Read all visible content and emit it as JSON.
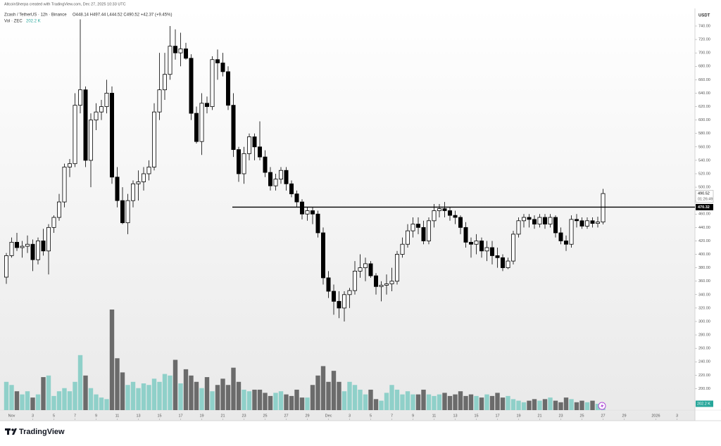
{
  "chart_data": {
    "type": "candlestick",
    "title": "AltcoinSherpa created with TradingView.com, Dec 27, 2025 10:33 UTC",
    "legend": "Zcash / TetherUS · 12h · Binance",
    "legend_values": "O448.14 H497.44 L444.52 C490.52 +42.37 (+9.45%)",
    "volume_name": "Vol · ZEC",
    "volume_label": "202.2 K",
    "axis_unit": "USDT",
    "countdown": "01:26:49",
    "brand": "TradingView",
    "open": [
      366,
      398,
      418,
      410,
      412,
      415,
      392,
      420,
      405,
      440,
      455,
      478,
      530,
      535,
      622,
      645,
      540,
      600,
      612,
      620,
      640,
      515,
      480,
      447,
      480,
      505,
      508,
      520,
      530,
      612,
      645,
      668,
      710,
      700,
      706,
      692,
      610,
      568,
      625,
      620,
      690,
      685,
      672,
      622,
      556,
      520,
      550,
      575,
      560,
      545,
      522,
      502,
      512,
      525,
      505,
      490,
      478,
      460,
      465,
      460,
      432,
      365,
      345,
      330,
      320,
      340,
      346,
      375,
      380,
      386,
      368,
      352,
      354,
      356,
      360,
      400,
      415,
      435,
      445,
      440,
      420,
      450,
      465,
      468,
      465,
      458,
      455,
      440,
      418,
      415,
      420,
      405,
      410,
      398,
      395,
      380,
      390,
      430,
      450,
      455,
      452,
      445,
      455,
      445,
      455,
      432,
      420,
      415,
      452,
      450,
      442,
      450,
      446,
      448.14
    ],
    "high": [
      402,
      425,
      432,
      420,
      428,
      422,
      425,
      438,
      445,
      458,
      490,
      535,
      542,
      640,
      750,
      650,
      610,
      625,
      630,
      660,
      650,
      530,
      500,
      490,
      510,
      525,
      530,
      540,
      625,
      700,
      700,
      740,
      735,
      730,
      715,
      698,
      620,
      640,
      635,
      695,
      705,
      700,
      680,
      640,
      560,
      560,
      580,
      580,
      598,
      555,
      530,
      520,
      530,
      530,
      510,
      495,
      482,
      470,
      470,
      465,
      440,
      375,
      355,
      345,
      345,
      350,
      390,
      400,
      395,
      390,
      372,
      360,
      370,
      380,
      405,
      425,
      445,
      455,
      455,
      450,
      455,
      475,
      475,
      478,
      470,
      465,
      458,
      448,
      425,
      430,
      425,
      420,
      420,
      410,
      400,
      395,
      435,
      455,
      460,
      460,
      458,
      460,
      460,
      460,
      458,
      440,
      428,
      458,
      460,
      455,
      455,
      455,
      456,
      497.44
    ],
    "low": [
      356,
      395,
      405,
      395,
      402,
      375,
      385,
      398,
      370,
      432,
      450,
      470,
      515,
      530,
      610,
      530,
      500,
      585,
      600,
      610,
      505,
      470,
      445,
      430,
      470,
      480,
      495,
      510,
      525,
      600,
      630,
      660,
      690,
      680,
      690,
      600,
      565,
      548,
      610,
      615,
      660,
      665,
      615,
      545,
      508,
      505,
      540,
      540,
      540,
      515,
      495,
      495,
      505,
      495,
      485,
      470,
      452,
      450,
      445,
      425,
      355,
      335,
      310,
      305,
      300,
      320,
      340,
      365,
      360,
      365,
      340,
      330,
      340,
      345,
      355,
      395,
      410,
      425,
      430,
      415,
      415,
      440,
      455,
      455,
      450,
      445,
      430,
      410,
      395,
      400,
      395,
      390,
      385,
      380,
      375,
      378,
      385,
      425,
      440,
      440,
      438,
      440,
      438,
      440,
      425,
      415,
      405,
      410,
      440,
      438,
      438,
      440,
      440,
      444.52
    ],
    "close": [
      398,
      418,
      410,
      412,
      415,
      392,
      420,
      405,
      440,
      455,
      478,
      530,
      535,
      622,
      645,
      540,
      600,
      612,
      620,
      640,
      515,
      480,
      447,
      480,
      505,
      508,
      520,
      530,
      612,
      645,
      668,
      710,
      700,
      706,
      692,
      610,
      568,
      625,
      620,
      690,
      685,
      672,
      622,
      556,
      520,
      550,
      575,
      560,
      545,
      522,
      502,
      512,
      525,
      505,
      490,
      478,
      460,
      465,
      460,
      432,
      365,
      345,
      330,
      320,
      340,
      346,
      375,
      380,
      386,
      368,
      352,
      354,
      356,
      360,
      400,
      415,
      435,
      445,
      440,
      420,
      450,
      465,
      468,
      465,
      458,
      455,
      440,
      418,
      415,
      420,
      405,
      410,
      398,
      395,
      380,
      390,
      430,
      450,
      455,
      452,
      445,
      455,
      445,
      455,
      432,
      420,
      415,
      452,
      450,
      442,
      450,
      446,
      448.14,
      490.52
    ],
    "volume": [
      900,
      800,
      600,
      500,
      600,
      400,
      500,
      1050,
      1100,
      450,
      600,
      700,
      600,
      900,
      1750,
      1100,
      700,
      500,
      400,
      350,
      3200,
      1650,
      1200,
      800,
      900,
      700,
      850,
      800,
      1000,
      900,
      1150,
      1100,
      1600,
      850,
      1300,
      1100,
      900,
      700,
      1050,
      600,
      800,
      1000,
      800,
      1350,
      900,
      650,
      600,
      650,
      650,
      550,
      450,
      550,
      600,
      500,
      450,
      650,
      400,
      400,
      800,
      1100,
      1400,
      900,
      1250,
      900,
      600,
      900,
      800,
      650,
      500,
      650,
      350,
      300,
      550,
      800,
      650,
      500,
      600,
      500,
      500,
      650,
      500,
      450,
      500,
      550,
      450,
      500,
      600,
      450,
      500,
      450,
      400,
      500,
      450,
      550,
      400,
      450,
      350,
      300,
      250,
      300,
      350,
      300,
      350,
      400,
      300,
      250,
      400,
      350,
      250,
      300,
      250,
      300,
      200,
      202.2
    ],
    "up_color": "#ffffff",
    "down_color": "#000000",
    "up_volume_color": "#8fd0c9",
    "down_volume_color": "#6b6b6b",
    "hline": {
      "value": 470.32,
      "color": "#000000"
    },
    "xlim": [
      -1.2,
      130.4
    ],
    "ylim": [
      153.3,
      764.1
    ],
    "xticks": [
      {
        "value": 1,
        "label": "Nov"
      },
      {
        "value": 5,
        "label": "3"
      },
      {
        "value": 9,
        "label": "5"
      },
      {
        "value": 13,
        "label": "7"
      },
      {
        "value": 17,
        "label": "9"
      },
      {
        "value": 21,
        "label": "11"
      },
      {
        "value": 25,
        "label": "13"
      },
      {
        "value": 29,
        "label": "15"
      },
      {
        "value": 33,
        "label": "17"
      },
      {
        "value": 37,
        "label": "19"
      },
      {
        "value": 41,
        "label": "21"
      },
      {
        "value": 45,
        "label": "23"
      },
      {
        "value": 49,
        "label": "25"
      },
      {
        "value": 53,
        "label": "27"
      },
      {
        "value": 57,
        "label": "29"
      },
      {
        "value": 61,
        "label": "Dec"
      },
      {
        "value": 65,
        "label": "3"
      },
      {
        "value": 69,
        "label": "5"
      },
      {
        "value": 73,
        "label": "7"
      },
      {
        "value": 77,
        "label": "9"
      },
      {
        "value": 81,
        "label": "11"
      },
      {
        "value": 85,
        "label": "13"
      },
      {
        "value": 89,
        "label": "15"
      },
      {
        "value": 93,
        "label": "17"
      },
      {
        "value": 97,
        "label": "19"
      },
      {
        "value": 101,
        "label": "21"
      },
      {
        "value": 105,
        "label": "23"
      },
      {
        "value": 109,
        "label": "25"
      },
      {
        "value": 113,
        "label": "27"
      },
      {
        "value": 117,
        "label": "29"
      },
      {
        "value": 123,
        "label": "2026"
      },
      {
        "value": 127,
        "label": "3"
      }
    ],
    "yticks": [
      {
        "value": 200,
        "label": "200.00"
      },
      {
        "value": 220,
        "label": "220.00"
      },
      {
        "value": 240,
        "label": "240.00"
      },
      {
        "value": 260,
        "label": "260.00"
      },
      {
        "value": 280,
        "label": "280.00"
      },
      {
        "value": 300,
        "label": "300.00"
      },
      {
        "value": 320,
        "label": "320.00"
      },
      {
        "value": 340,
        "label": "340.00"
      },
      {
        "value": 360,
        "label": "360.00"
      },
      {
        "value": 380,
        "label": "380.00"
      },
      {
        "value": 400,
        "label": "400.00"
      },
      {
        "value": 420,
        "label": "420.00"
      },
      {
        "value": 440,
        "label": "440.00"
      },
      {
        "value": 460,
        "label": "460.00"
      },
      {
        "value": 480,
        "label": "480.00"
      },
      {
        "value": 500,
        "label": "500.00"
      },
      {
        "value": 520,
        "label": "520.00"
      },
      {
        "value": 540,
        "label": "540.00"
      },
      {
        "value": 560,
        "label": "560.00"
      },
      {
        "value": 580,
        "label": "580.00"
      },
      {
        "value": 600,
        "label": "600.00"
      },
      {
        "value": 620,
        "label": "620.00"
      },
      {
        "value": 640,
        "label": "640.00"
      },
      {
        "value": 660,
        "label": "660.00"
      },
      {
        "value": 680,
        "label": "680.00"
      },
      {
        "value": 700,
        "label": "700.00"
      },
      {
        "value": 720,
        "label": "720.00"
      },
      {
        "value": 740,
        "label": "740.00"
      }
    ]
  }
}
